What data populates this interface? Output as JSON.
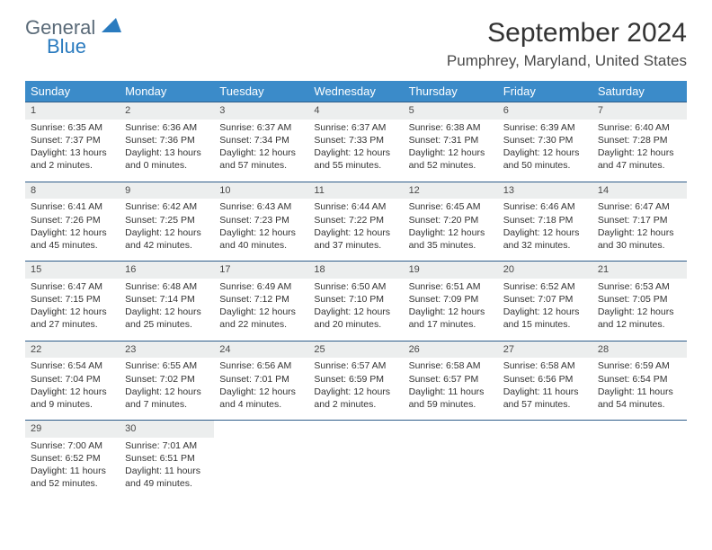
{
  "logo": {
    "general": "General",
    "blue": "Blue"
  },
  "title": "September 2024",
  "location": "Pumphrey, Maryland, United States",
  "dayHeaders": [
    "Sunday",
    "Monday",
    "Tuesday",
    "Wednesday",
    "Thursday",
    "Friday",
    "Saturday"
  ],
  "colors": {
    "header_bg": "#3b8bc9",
    "header_text": "#ffffff",
    "daynum_bg": "#eceeee",
    "rule": "#2e5d8a",
    "logo_gray": "#5a6a78",
    "logo_blue": "#2a7bbf"
  },
  "weeks": [
    [
      {
        "n": "1",
        "sr": "Sunrise: 6:35 AM",
        "ss": "Sunset: 7:37 PM",
        "dl": "Daylight: 13 hours and 2 minutes."
      },
      {
        "n": "2",
        "sr": "Sunrise: 6:36 AM",
        "ss": "Sunset: 7:36 PM",
        "dl": "Daylight: 13 hours and 0 minutes."
      },
      {
        "n": "3",
        "sr": "Sunrise: 6:37 AM",
        "ss": "Sunset: 7:34 PM",
        "dl": "Daylight: 12 hours and 57 minutes."
      },
      {
        "n": "4",
        "sr": "Sunrise: 6:37 AM",
        "ss": "Sunset: 7:33 PM",
        "dl": "Daylight: 12 hours and 55 minutes."
      },
      {
        "n": "5",
        "sr": "Sunrise: 6:38 AM",
        "ss": "Sunset: 7:31 PM",
        "dl": "Daylight: 12 hours and 52 minutes."
      },
      {
        "n": "6",
        "sr": "Sunrise: 6:39 AM",
        "ss": "Sunset: 7:30 PM",
        "dl": "Daylight: 12 hours and 50 minutes."
      },
      {
        "n": "7",
        "sr": "Sunrise: 6:40 AM",
        "ss": "Sunset: 7:28 PM",
        "dl": "Daylight: 12 hours and 47 minutes."
      }
    ],
    [
      {
        "n": "8",
        "sr": "Sunrise: 6:41 AM",
        "ss": "Sunset: 7:26 PM",
        "dl": "Daylight: 12 hours and 45 minutes."
      },
      {
        "n": "9",
        "sr": "Sunrise: 6:42 AM",
        "ss": "Sunset: 7:25 PM",
        "dl": "Daylight: 12 hours and 42 minutes."
      },
      {
        "n": "10",
        "sr": "Sunrise: 6:43 AM",
        "ss": "Sunset: 7:23 PM",
        "dl": "Daylight: 12 hours and 40 minutes."
      },
      {
        "n": "11",
        "sr": "Sunrise: 6:44 AM",
        "ss": "Sunset: 7:22 PM",
        "dl": "Daylight: 12 hours and 37 minutes."
      },
      {
        "n": "12",
        "sr": "Sunrise: 6:45 AM",
        "ss": "Sunset: 7:20 PM",
        "dl": "Daylight: 12 hours and 35 minutes."
      },
      {
        "n": "13",
        "sr": "Sunrise: 6:46 AM",
        "ss": "Sunset: 7:18 PM",
        "dl": "Daylight: 12 hours and 32 minutes."
      },
      {
        "n": "14",
        "sr": "Sunrise: 6:47 AM",
        "ss": "Sunset: 7:17 PM",
        "dl": "Daylight: 12 hours and 30 minutes."
      }
    ],
    [
      {
        "n": "15",
        "sr": "Sunrise: 6:47 AM",
        "ss": "Sunset: 7:15 PM",
        "dl": "Daylight: 12 hours and 27 minutes."
      },
      {
        "n": "16",
        "sr": "Sunrise: 6:48 AM",
        "ss": "Sunset: 7:14 PM",
        "dl": "Daylight: 12 hours and 25 minutes."
      },
      {
        "n": "17",
        "sr": "Sunrise: 6:49 AM",
        "ss": "Sunset: 7:12 PM",
        "dl": "Daylight: 12 hours and 22 minutes."
      },
      {
        "n": "18",
        "sr": "Sunrise: 6:50 AM",
        "ss": "Sunset: 7:10 PM",
        "dl": "Daylight: 12 hours and 20 minutes."
      },
      {
        "n": "19",
        "sr": "Sunrise: 6:51 AM",
        "ss": "Sunset: 7:09 PM",
        "dl": "Daylight: 12 hours and 17 minutes."
      },
      {
        "n": "20",
        "sr": "Sunrise: 6:52 AM",
        "ss": "Sunset: 7:07 PM",
        "dl": "Daylight: 12 hours and 15 minutes."
      },
      {
        "n": "21",
        "sr": "Sunrise: 6:53 AM",
        "ss": "Sunset: 7:05 PM",
        "dl": "Daylight: 12 hours and 12 minutes."
      }
    ],
    [
      {
        "n": "22",
        "sr": "Sunrise: 6:54 AM",
        "ss": "Sunset: 7:04 PM",
        "dl": "Daylight: 12 hours and 9 minutes."
      },
      {
        "n": "23",
        "sr": "Sunrise: 6:55 AM",
        "ss": "Sunset: 7:02 PM",
        "dl": "Daylight: 12 hours and 7 minutes."
      },
      {
        "n": "24",
        "sr": "Sunrise: 6:56 AM",
        "ss": "Sunset: 7:01 PM",
        "dl": "Daylight: 12 hours and 4 minutes."
      },
      {
        "n": "25",
        "sr": "Sunrise: 6:57 AM",
        "ss": "Sunset: 6:59 PM",
        "dl": "Daylight: 12 hours and 2 minutes."
      },
      {
        "n": "26",
        "sr": "Sunrise: 6:58 AM",
        "ss": "Sunset: 6:57 PM",
        "dl": "Daylight: 11 hours and 59 minutes."
      },
      {
        "n": "27",
        "sr": "Sunrise: 6:58 AM",
        "ss": "Sunset: 6:56 PM",
        "dl": "Daylight: 11 hours and 57 minutes."
      },
      {
        "n": "28",
        "sr": "Sunrise: 6:59 AM",
        "ss": "Sunset: 6:54 PM",
        "dl": "Daylight: 11 hours and 54 minutes."
      }
    ],
    [
      {
        "n": "29",
        "sr": "Sunrise: 7:00 AM",
        "ss": "Sunset: 6:52 PM",
        "dl": "Daylight: 11 hours and 52 minutes."
      },
      {
        "n": "30",
        "sr": "Sunrise: 7:01 AM",
        "ss": "Sunset: 6:51 PM",
        "dl": "Daylight: 11 hours and 49 minutes."
      },
      null,
      null,
      null,
      null,
      null
    ]
  ]
}
